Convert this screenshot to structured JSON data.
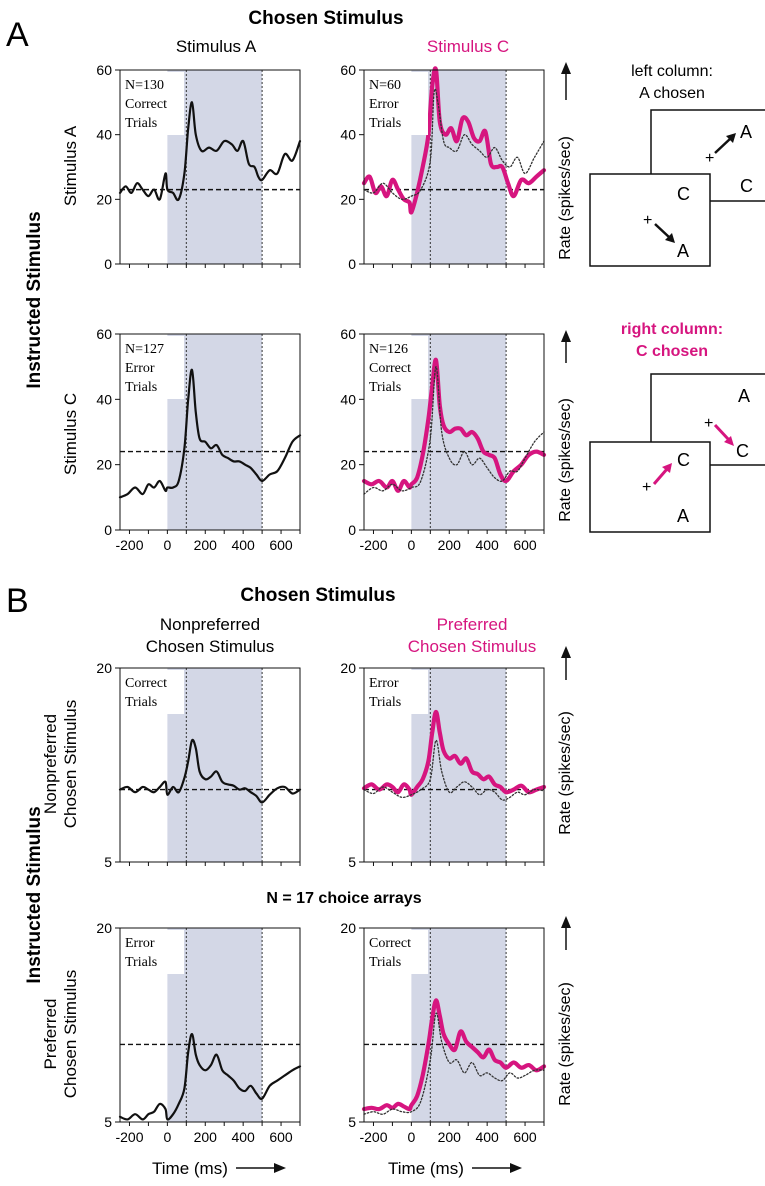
{
  "colors": {
    "magenta": "#d6157f",
    "black": "#111111",
    "shade": "#d3d7e6",
    "dotted": "#333333"
  },
  "panel_a": {
    "letter": "A",
    "top_title": "Chosen Stimulus",
    "col_left": "Stimulus A",
    "col_right": "Stimulus C",
    "row_title": "Instructed Stimulus",
    "row_top": "Stimulus A",
    "row_bottom": "Stimulus C",
    "rate_label": "Rate (spikes/sec)",
    "diagram_top": {
      "caption_line1": "left column:",
      "caption_line2": "A chosen"
    },
    "diagram_bottom": {
      "caption_line1": "right column:",
      "caption_line2": "C chosen"
    },
    "diagram_letter_a": "A",
    "diagram_letter_c": "C",
    "diagram_cross": "+"
  },
  "panel_b": {
    "letter": "B",
    "top_title": "Chosen Stimulus",
    "col_left_line1": "Nonpreferred",
    "col_left_line2": "Chosen Stimulus",
    "col_right_line1": "Preferred",
    "col_right_line2": "Chosen Stimulus",
    "row_title": "Instructed Stimulus",
    "row_top_line1": "Nonpreferred",
    "row_top_line2": "Chosen Stimulus",
    "row_bottom_line1": "Preferred",
    "row_bottom_line2": "Chosen Stimulus",
    "middle_note": "N = 17 choice arrays",
    "rate_label": "Rate (spikes/sec)",
    "xlabel": "Time (ms)"
  },
  "chart_data": [
    {
      "type": "line",
      "id": "a1",
      "annotation": [
        "N=130",
        "Correct",
        "Trials"
      ],
      "xlim": [
        -250,
        700
      ],
      "ylim": [
        0,
        60
      ],
      "xticks": [],
      "yticks": [
        0,
        20,
        40,
        60
      ],
      "shaded_region": [
        0,
        500
      ],
      "event_lines": [
        100,
        500
      ],
      "baseline": 23,
      "series": [
        {
          "color": "#111111",
          "style": "thin",
          "x": [
            -250,
            -220,
            -190,
            -160,
            -130,
            -100,
            -70,
            -40,
            -10,
            0,
            30,
            60,
            90,
            110,
            130,
            150,
            180,
            220,
            260,
            300,
            340,
            370,
            400,
            430,
            460,
            480,
            500,
            540,
            580,
            620,
            660,
            700
          ],
          "y": [
            22,
            24,
            22,
            25,
            23,
            21,
            23,
            20,
            28,
            23,
            22,
            20,
            28,
            42,
            50,
            40,
            35,
            36,
            35,
            38,
            37,
            35,
            38,
            31,
            30,
            27,
            26,
            29,
            28,
            34,
            32,
            38
          ]
        }
      ]
    },
    {
      "type": "line",
      "id": "a2",
      "annotation": [
        "N=60",
        "Error",
        "Trials"
      ],
      "xlim": [
        -250,
        700
      ],
      "ylim": [
        0,
        60
      ],
      "xticks": [],
      "yticks": [
        0,
        20,
        40,
        60
      ],
      "shaded_region": [
        0,
        500
      ],
      "event_lines": [
        100,
        500
      ],
      "baseline": 23,
      "series": [
        {
          "color": "#d6157f",
          "style": "thick",
          "x": [
            -250,
            -220,
            -190,
            -160,
            -130,
            -100,
            -70,
            -40,
            -10,
            0,
            30,
            60,
            90,
            110,
            130,
            150,
            180,
            210,
            240,
            270,
            300,
            330,
            360,
            390,
            420,
            450,
            480,
            510,
            540,
            580,
            620,
            660,
            700
          ],
          "y": [
            25,
            27,
            22,
            24,
            21,
            26,
            23,
            20,
            19,
            16,
            22,
            30,
            40,
            55,
            60,
            44,
            40,
            42,
            38,
            45,
            44,
            39,
            38,
            41,
            31,
            30,
            30,
            25,
            21,
            26,
            25,
            27,
            29
          ]
        },
        {
          "color": "#333333",
          "style": "dotted",
          "x": [
            -250,
            -200,
            -150,
            -100,
            -50,
            0,
            50,
            100,
            120,
            140,
            170,
            200,
            240,
            280,
            320,
            360,
            400,
            440,
            480,
            520,
            560,
            600,
            650,
            700
          ],
          "y": [
            23,
            22,
            25,
            22,
            20,
            21,
            23,
            32,
            53,
            50,
            38,
            36,
            35,
            40,
            37,
            35,
            33,
            36,
            32,
            30,
            33,
            28,
            33,
            38
          ]
        }
      ]
    },
    {
      "type": "line",
      "id": "a3",
      "annotation": [
        "N=127",
        "Error",
        "Trials"
      ],
      "xlim": [
        -250,
        700
      ],
      "ylim": [
        0,
        60
      ],
      "xticks": [
        -200,
        0,
        200,
        400,
        600
      ],
      "yticks": [
        0,
        20,
        40,
        60
      ],
      "shaded_region": [
        0,
        500
      ],
      "event_lines": [
        100,
        500
      ],
      "baseline": 24,
      "series": [
        {
          "color": "#111111",
          "style": "thin",
          "x": [
            -250,
            -210,
            -170,
            -130,
            -100,
            -70,
            -40,
            -10,
            0,
            30,
            60,
            90,
            110,
            130,
            150,
            170,
            200,
            230,
            260,
            290,
            320,
            350,
            380,
            410,
            440,
            470,
            500,
            540,
            580,
            620,
            660,
            700
          ],
          "y": [
            10,
            11,
            13,
            11,
            14,
            13,
            15,
            12,
            13,
            13,
            15,
            25,
            40,
            49,
            36,
            28,
            27,
            25,
            26,
            23,
            22,
            21,
            21,
            20,
            19,
            17,
            15,
            17,
            18,
            22,
            27,
            29
          ]
        }
      ]
    },
    {
      "type": "line",
      "id": "a4",
      "annotation": [
        "N=126",
        "Correct",
        "Trials"
      ],
      "xlim": [
        -250,
        700
      ],
      "ylim": [
        0,
        60
      ],
      "xticks": [
        -200,
        0,
        200,
        400,
        600
      ],
      "yticks": [
        0,
        20,
        40,
        60
      ],
      "shaded_region": [
        0,
        500
      ],
      "event_lines": [
        100,
        500
      ],
      "baseline": 24,
      "series": [
        {
          "color": "#d6157f",
          "style": "thick",
          "x": [
            -250,
            -210,
            -170,
            -130,
            -100,
            -70,
            -40,
            -10,
            0,
            30,
            60,
            90,
            110,
            130,
            150,
            170,
            200,
            230,
            260,
            290,
            320,
            350,
            380,
            410,
            440,
            470,
            500,
            540,
            580,
            620,
            660,
            700
          ],
          "y": [
            15,
            14,
            15,
            13,
            15,
            12,
            15,
            13,
            14,
            16,
            23,
            34,
            44,
            52,
            38,
            32,
            30,
            31,
            31,
            29,
            30,
            28,
            24,
            23,
            22,
            17,
            15,
            18,
            20,
            23,
            24,
            23
          ]
        },
        {
          "color": "#333333",
          "style": "dotted",
          "x": [
            -250,
            -200,
            -150,
            -100,
            -50,
            0,
            50,
            100,
            130,
            160,
            200,
            240,
            280,
            320,
            360,
            400,
            440,
            480,
            520,
            560,
            600,
            650,
            700
          ],
          "y": [
            11,
            13,
            12,
            14,
            12,
            13,
            15,
            28,
            50,
            30,
            22,
            20,
            24,
            20,
            22,
            19,
            16,
            15,
            18,
            18,
            22,
            27,
            30
          ]
        }
      ]
    },
    {
      "type": "line",
      "id": "b1",
      "annotation": [
        "Correct",
        "Trials"
      ],
      "xlim": [
        -250,
        700
      ],
      "ylim": [
        5,
        20
      ],
      "xticks": [],
      "yticks": [
        5,
        20
      ],
      "shaded_region": [
        0,
        500
      ],
      "event_lines": [
        100,
        500
      ],
      "baseline": 10.6,
      "series": [
        {
          "color": "#111111",
          "style": "thin",
          "x": [
            -250,
            -210,
            -170,
            -130,
            -100,
            -70,
            -40,
            -10,
            0,
            30,
            60,
            90,
            110,
            130,
            150,
            170,
            200,
            230,
            260,
            290,
            320,
            350,
            380,
            410,
            440,
            470,
            500,
            540,
            580,
            620,
            660,
            700
          ],
          "y": [
            10.6,
            10.8,
            10.4,
            10.8,
            10.6,
            10.4,
            10.8,
            11.2,
            10.2,
            10.8,
            10.4,
            11.5,
            12.8,
            14.4,
            13.8,
            12.0,
            11.4,
            11.6,
            12.0,
            11.2,
            11.0,
            10.9,
            10.6,
            10.7,
            10.4,
            10.1,
            9.6,
            10.2,
            10.7,
            10.8,
            10.3,
            10.6
          ]
        }
      ]
    },
    {
      "type": "line",
      "id": "b2",
      "annotation": [
        "Error",
        "Trials"
      ],
      "xlim": [
        -250,
        700
      ],
      "ylim": [
        5,
        20
      ],
      "xticks": [],
      "yticks": [
        5,
        20
      ],
      "shaded_region": [
        0,
        500
      ],
      "event_lines": [
        100,
        500
      ],
      "baseline": 10.6,
      "series": [
        {
          "color": "#d6157f",
          "style": "thick",
          "x": [
            -250,
            -210,
            -170,
            -130,
            -100,
            -70,
            -40,
            -10,
            0,
            30,
            60,
            90,
            110,
            130,
            150,
            170,
            200,
            230,
            260,
            290,
            320,
            350,
            380,
            410,
            440,
            470,
            500,
            540,
            580,
            620,
            660,
            700
          ],
          "y": [
            10.7,
            11.0,
            10.6,
            11.0,
            10.8,
            10.4,
            11.0,
            10.6,
            10.2,
            10.8,
            11.4,
            12.8,
            15.0,
            16.6,
            15.0,
            13.6,
            13.0,
            13.2,
            12.6,
            13.0,
            12.0,
            11.8,
            11.4,
            11.6,
            11.0,
            10.8,
            10.4,
            10.6,
            10.9,
            10.4,
            10.6,
            10.8
          ]
        },
        {
          "color": "#333333",
          "style": "dotted",
          "x": [
            -250,
            -200,
            -150,
            -100,
            -50,
            0,
            50,
            100,
            130,
            160,
            200,
            240,
            280,
            320,
            360,
            400,
            440,
            480,
            520,
            560,
            600,
            650,
            700
          ],
          "y": [
            10.6,
            10.3,
            10.8,
            10.4,
            10.0,
            10.2,
            10.6,
            11.4,
            14.4,
            12.0,
            10.4,
            10.8,
            11.2,
            10.8,
            10.2,
            10.6,
            10.4,
            9.8,
            10.0,
            10.4,
            10.2,
            10.6,
            10.5
          ]
        }
      ]
    },
    {
      "type": "line",
      "id": "b3",
      "annotation": [
        "Error",
        "Trials"
      ],
      "xlim": [
        -250,
        700
      ],
      "ylim": [
        5,
        20
      ],
      "xticks": [
        -200,
        0,
        200,
        400,
        600
      ],
      "yticks": [
        5,
        20
      ],
      "shaded_region": [
        0,
        500
      ],
      "event_lines": [
        100,
        500
      ],
      "baseline": 11.0,
      "series": [
        {
          "color": "#111111",
          "style": "thin",
          "x": [
            -250,
            -210,
            -170,
            -130,
            -100,
            -70,
            -40,
            -10,
            0,
            30,
            60,
            90,
            110,
            130,
            150,
            170,
            200,
            230,
            260,
            290,
            320,
            350,
            380,
            410,
            440,
            470,
            500,
            540,
            580,
            620,
            660,
            700
          ],
          "y": [
            5.4,
            5.2,
            5.6,
            5.2,
            5.6,
            5.8,
            6.4,
            6.0,
            5.2,
            5.6,
            6.4,
            7.6,
            10.4,
            11.8,
            10.2,
            9.4,
            9.0,
            9.4,
            10.2,
            9.0,
            8.6,
            8.2,
            7.6,
            7.4,
            7.8,
            7.2,
            6.8,
            7.8,
            8.2,
            8.6,
            9.0,
            9.3
          ]
        }
      ]
    },
    {
      "type": "line",
      "id": "b4",
      "annotation": [
        "Correct",
        "Trials"
      ],
      "xlim": [
        -250,
        700
      ],
      "ylim": [
        5,
        20
      ],
      "xticks": [
        -200,
        0,
        200,
        400,
        600
      ],
      "yticks": [
        5,
        20
      ],
      "shaded_region": [
        0,
        500
      ],
      "event_lines": [
        100,
        500
      ],
      "baseline": 11.0,
      "series": [
        {
          "color": "#d6157f",
          "style": "thick",
          "x": [
            -250,
            -210,
            -170,
            -130,
            -100,
            -70,
            -40,
            -10,
            0,
            30,
            60,
            90,
            110,
            130,
            150,
            170,
            200,
            230,
            260,
            290,
            320,
            350,
            380,
            410,
            440,
            470,
            500,
            540,
            580,
            620,
            660,
            700
          ],
          "y": [
            6.0,
            6.1,
            6.0,
            6.3,
            6.1,
            6.4,
            6.2,
            6.0,
            6.3,
            7.0,
            8.6,
            11.0,
            13.0,
            14.4,
            13.2,
            11.8,
            11.0,
            10.6,
            12.0,
            11.2,
            10.8,
            10.4,
            10.0,
            10.6,
            9.8,
            9.6,
            9.2,
            9.6,
            9.2,
            9.4,
            9.0,
            9.3
          ]
        },
        {
          "color": "#333333",
          "style": "dotted",
          "x": [
            -250,
            -200,
            -150,
            -100,
            -50,
            0,
            50,
            100,
            130,
            160,
            200,
            240,
            280,
            320,
            360,
            400,
            440,
            480,
            520,
            560,
            600,
            650,
            700
          ],
          "y": [
            5.6,
            5.8,
            5.6,
            6.0,
            5.8,
            5.8,
            6.6,
            9.8,
            13.4,
            11.2,
            9.6,
            9.8,
            8.8,
            9.6,
            8.6,
            8.8,
            8.4,
            8.2,
            8.8,
            8.4,
            8.6,
            9.0,
            9.0
          ]
        }
      ]
    }
  ]
}
